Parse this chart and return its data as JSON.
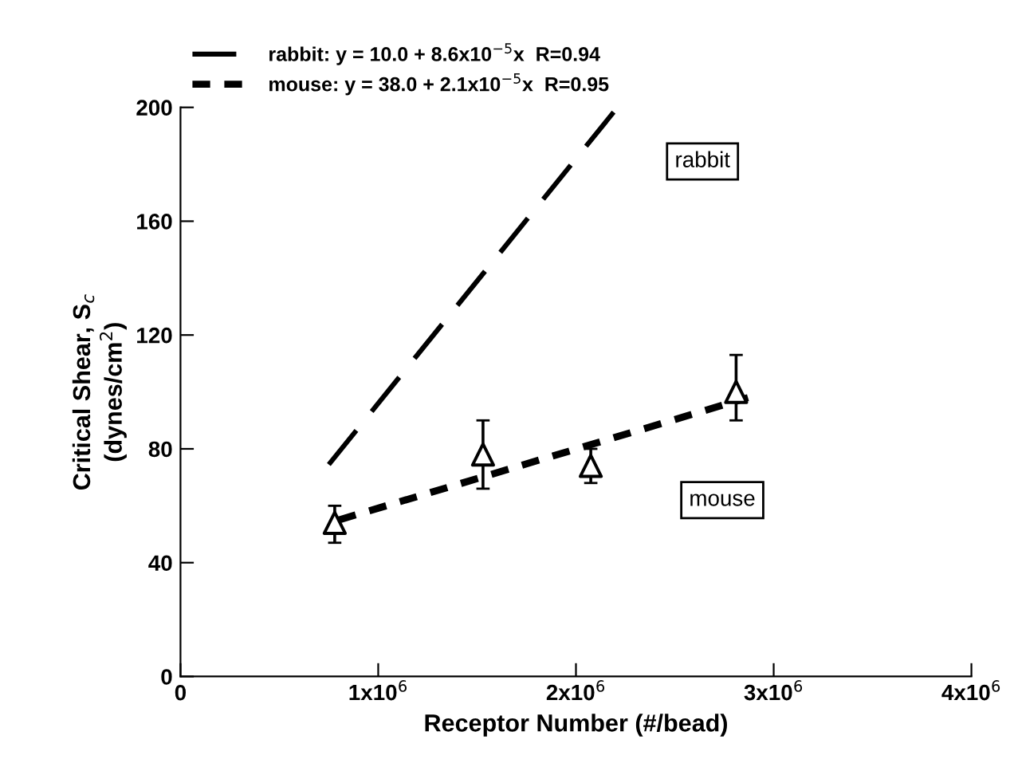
{
  "chart_data": {
    "type": "line",
    "xlabel": "Receptor Number (#/bead)",
    "ylabel": "Critical Shear, S$_{c}$\n(dynes/cm$^{2}$)",
    "xlim": [
      0,
      4000000
    ],
    "ylim": [
      0,
      200
    ],
    "xticks": [
      0,
      {
        "value": 1000000,
        "label": "1x10$^{6}$"
      },
      {
        "value": 2000000,
        "label": "2x10$^{6}$"
      },
      {
        "value": 3000000,
        "label": "3x10$^{6}$"
      },
      {
        "value": 4000000,
        "label": "4x10$^{6}$"
      }
    ],
    "yticks": [
      0,
      40,
      80,
      120,
      160,
      200
    ],
    "grid": false,
    "legend": "top",
    "series": [
      {
        "name": "rabbit: y = 10.0 + 8.6x10$^{−5}$x  R=0.94",
        "color": "#000000",
        "line_style": "dashed",
        "marker": "none",
        "x": [
          750000,
          2210000
        ],
        "values": [
          74.5,
          200
        ]
      },
      {
        "name": "mouse: y = 38.0 + 2.1x10$^{−5}$x  R=0.95",
        "color": "#000000",
        "line_style": "dotted",
        "marker": "none",
        "x": [
          800000,
          2870000
        ],
        "values": [
          55,
          98
        ]
      },
      {
        "type": "scatter",
        "color": "#000000",
        "marker": "triangle",
        "x": [
          780000,
          1530000,
          2075000,
          2810000
        ],
        "values": [
          54,
          78,
          74,
          100
        ],
        "errors": [
          [
            47,
            60
          ],
          [
            66,
            90
          ],
          [
            68,
            80
          ],
          [
            90,
            113
          ]
        ]
      }
    ],
    "annotations": [
      "rabbit",
      "mouse"
    ]
  }
}
